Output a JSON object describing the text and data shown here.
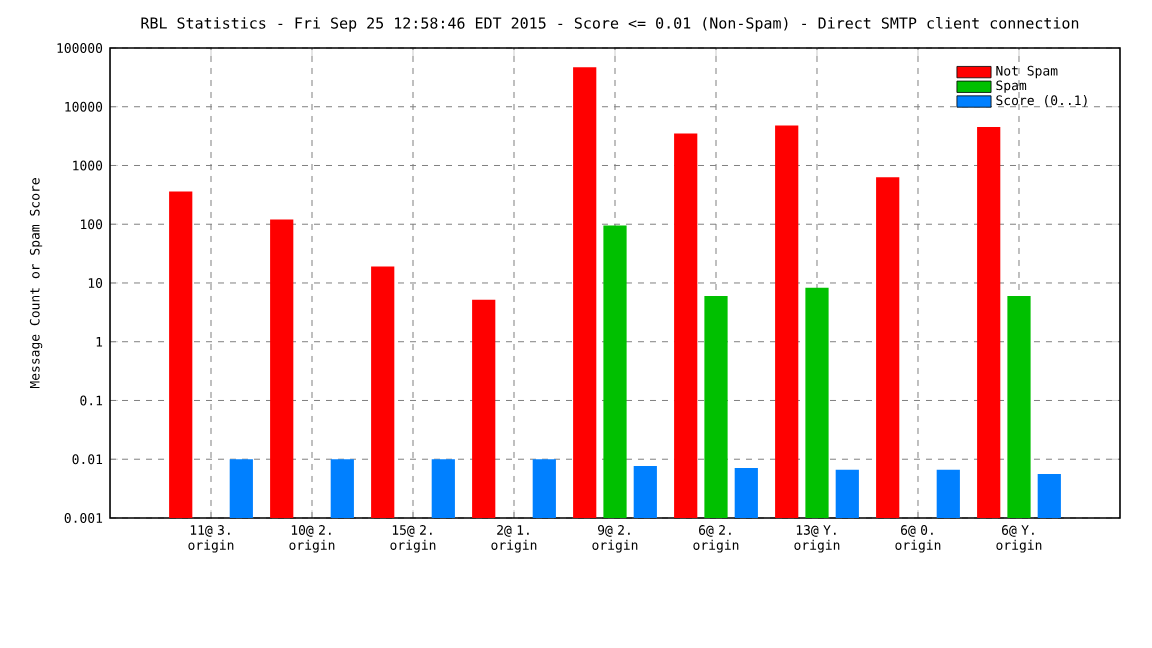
{
  "chart_data": {
    "type": "bar",
    "title": "RBL Statistics - Fri Sep 25 12:58:46 EDT 2015 - Score <= 0.01 (Non-Spam) - Direct SMTP client connection",
    "ylabel": "Message Count or Spam Score",
    "categories": [
      "11@ 3. origin",
      "10@ 2. origin",
      "15@ 2. origin",
      "2@ 1. origin",
      "9@ 2. origin",
      "6@ 2. origin",
      "13@ Y. origin",
      "6@ 0. origin",
      "6@ Y. origin"
    ],
    "series": [
      {
        "name": "Not Spam",
        "color": "#ff0000",
        "values": [
          360,
          120,
          19,
          5.2,
          47000,
          3500,
          4800,
          630,
          4500
        ]
      },
      {
        "name": "Spam",
        "color": "#00c000",
        "values": [
          null,
          null,
          null,
          null,
          95,
          6,
          8.3,
          null,
          6
        ]
      },
      {
        "name": "Score (0..1)",
        "color": "#0080ff",
        "values": [
          0.01,
          0.01,
          0.01,
          0.01,
          0.0077,
          0.0071,
          0.0066,
          0.0066,
          0.0056
        ]
      }
    ],
    "log": true,
    "ylim": [
      0.001,
      100000
    ],
    "yticks": [
      0.001,
      0.01,
      0.1,
      1,
      10,
      100,
      1000,
      10000,
      100000
    ],
    "grid": true,
    "legend": "top right"
  }
}
